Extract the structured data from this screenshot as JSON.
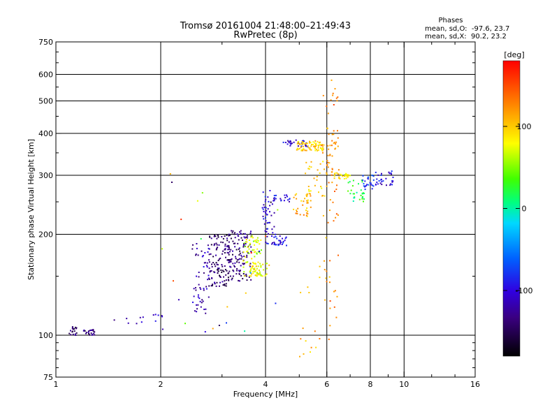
{
  "chart_data": {
    "type": "scatter",
    "title": "Tromsø 20161004 21:48:00–21:49:43",
    "subtitle": "RwPretec (8p)",
    "xlabel": "Frequency [MHz]",
    "ylabel": "Stationary phase Virtual Height [km]",
    "x_scale": "log",
    "y_scale": "log",
    "xlim": [
      1,
      16
    ],
    "ylim": [
      75,
      750
    ],
    "grid": true,
    "x_ticks": [
      1,
      2,
      4,
      6,
      8,
      10,
      16
    ],
    "x_tick_labels": [
      "1",
      "2",
      "4",
      "6",
      "8",
      "10",
      "16"
    ],
    "x_gridlines": [
      2,
      4,
      6,
      8,
      10
    ],
    "y_ticks": [
      75,
      100,
      200,
      300,
      400,
      500,
      600,
      750
    ],
    "y_tick_labels": [
      "75",
      "100",
      "200",
      "300",
      "400",
      "500",
      "600",
      "750"
    ],
    "y_gridlines": [
      100,
      200,
      300,
      400,
      500,
      600
    ],
    "phase_stats": {
      "header": "Phases",
      "line_o": "mean, sd,O:  -97.6, 23.7",
      "line_x": "mean, sd,X:  90.2, 23.2"
    },
    "colorbar": {
      "label": "[deg]",
      "range": [
        -180,
        180
      ],
      "ticks": [
        100,
        0,
        -100
      ],
      "tick_labels": [
        "100",
        "0",
        "-100"
      ]
    },
    "clusters": [
      {
        "x": [
          1.09,
          1.16
        ],
        "y": [
          100,
          106
        ],
        "phase": -145,
        "n": 18
      },
      {
        "x": [
          1.18,
          1.3
        ],
        "y": [
          100,
          104
        ],
        "phase": -135,
        "n": 22
      },
      {
        "x": [
          1.45,
          1.8
        ],
        "y": [
          108,
          114
        ],
        "phase": -110,
        "n": 7
      },
      {
        "x": [
          1.9,
          2.05
        ],
        "y": [
          110,
          116
        ],
        "phase": -115,
        "n": 6
      },
      {
        "x": [
          2.45,
          2.75
        ],
        "y": [
          115,
          190
        ],
        "phase": -115,
        "n": 55
      },
      {
        "x": [
          2.75,
          3.15
        ],
        "y": [
          140,
          200
        ],
        "phase": -140,
        "n": 120
      },
      {
        "x": [
          3.1,
          3.65
        ],
        "y": [
          145,
          205
        ],
        "phase": -135,
        "n": 130
      },
      {
        "x": [
          3.45,
          3.9
        ],
        "y": [
          150,
          200
        ],
        "phase": 70,
        "n": 70
      },
      {
        "x": [
          3.6,
          4.1
        ],
        "y": [
          150,
          165
        ],
        "phase": 85,
        "n": 40
      },
      {
        "x": [
          4.0,
          4.6
        ],
        "y": [
          185,
          200
        ],
        "phase": -95,
        "n": 35
      },
      {
        "x": [
          3.9,
          4.25
        ],
        "y": [
          200,
          270
        ],
        "phase": -100,
        "n": 40
      },
      {
        "x": [
          4.2,
          4.7
        ],
        "y": [
          250,
          262
        ],
        "phase": -100,
        "n": 20
      },
      {
        "x": [
          4.5,
          5.3
        ],
        "y": [
          365,
          382
        ],
        "phase": -105,
        "n": 30
      },
      {
        "x": [
          4.9,
          5.9
        ],
        "y": [
          355,
          380
        ],
        "phase": 100,
        "n": 80
      },
      {
        "x": [
          4.8,
          5.4
        ],
        "y": [
          225,
          265
        ],
        "phase": 110,
        "n": 35
      },
      {
        "x": [
          5.2,
          6.0
        ],
        "y": [
          260,
          330
        ],
        "phase": 95,
        "n": 30
      },
      {
        "x": [
          6.0,
          6.5
        ],
        "y": [
          300,
          420
        ],
        "phase": 120,
        "n": 35
      },
      {
        "x": [
          6.3,
          7.0
        ],
        "y": [
          292,
          305
        ],
        "phase": 80,
        "n": 25
      },
      {
        "x": [
          6.9,
          7.7
        ],
        "y": [
          250,
          290
        ],
        "phase": 20,
        "n": 30
      },
      {
        "x": [
          7.6,
          8.2
        ],
        "y": [
          270,
          300
        ],
        "phase": -80,
        "n": 25
      },
      {
        "x": [
          8.2,
          9.3
        ],
        "y": [
          280,
          310
        ],
        "phase": -100,
        "n": 30
      },
      {
        "x": [
          5.8,
          6.5
        ],
        "y": [
          120,
          600
        ],
        "phase": 130,
        "n": 45
      },
      {
        "x": [
          5.0,
          6.4
        ],
        "y": [
          80,
          200
        ],
        "phase": 110,
        "n": 25
      },
      {
        "x": [
          2.0,
          5.0
        ],
        "y": [
          95,
          330
        ],
        "phase": 0,
        "n": 25
      }
    ]
  }
}
